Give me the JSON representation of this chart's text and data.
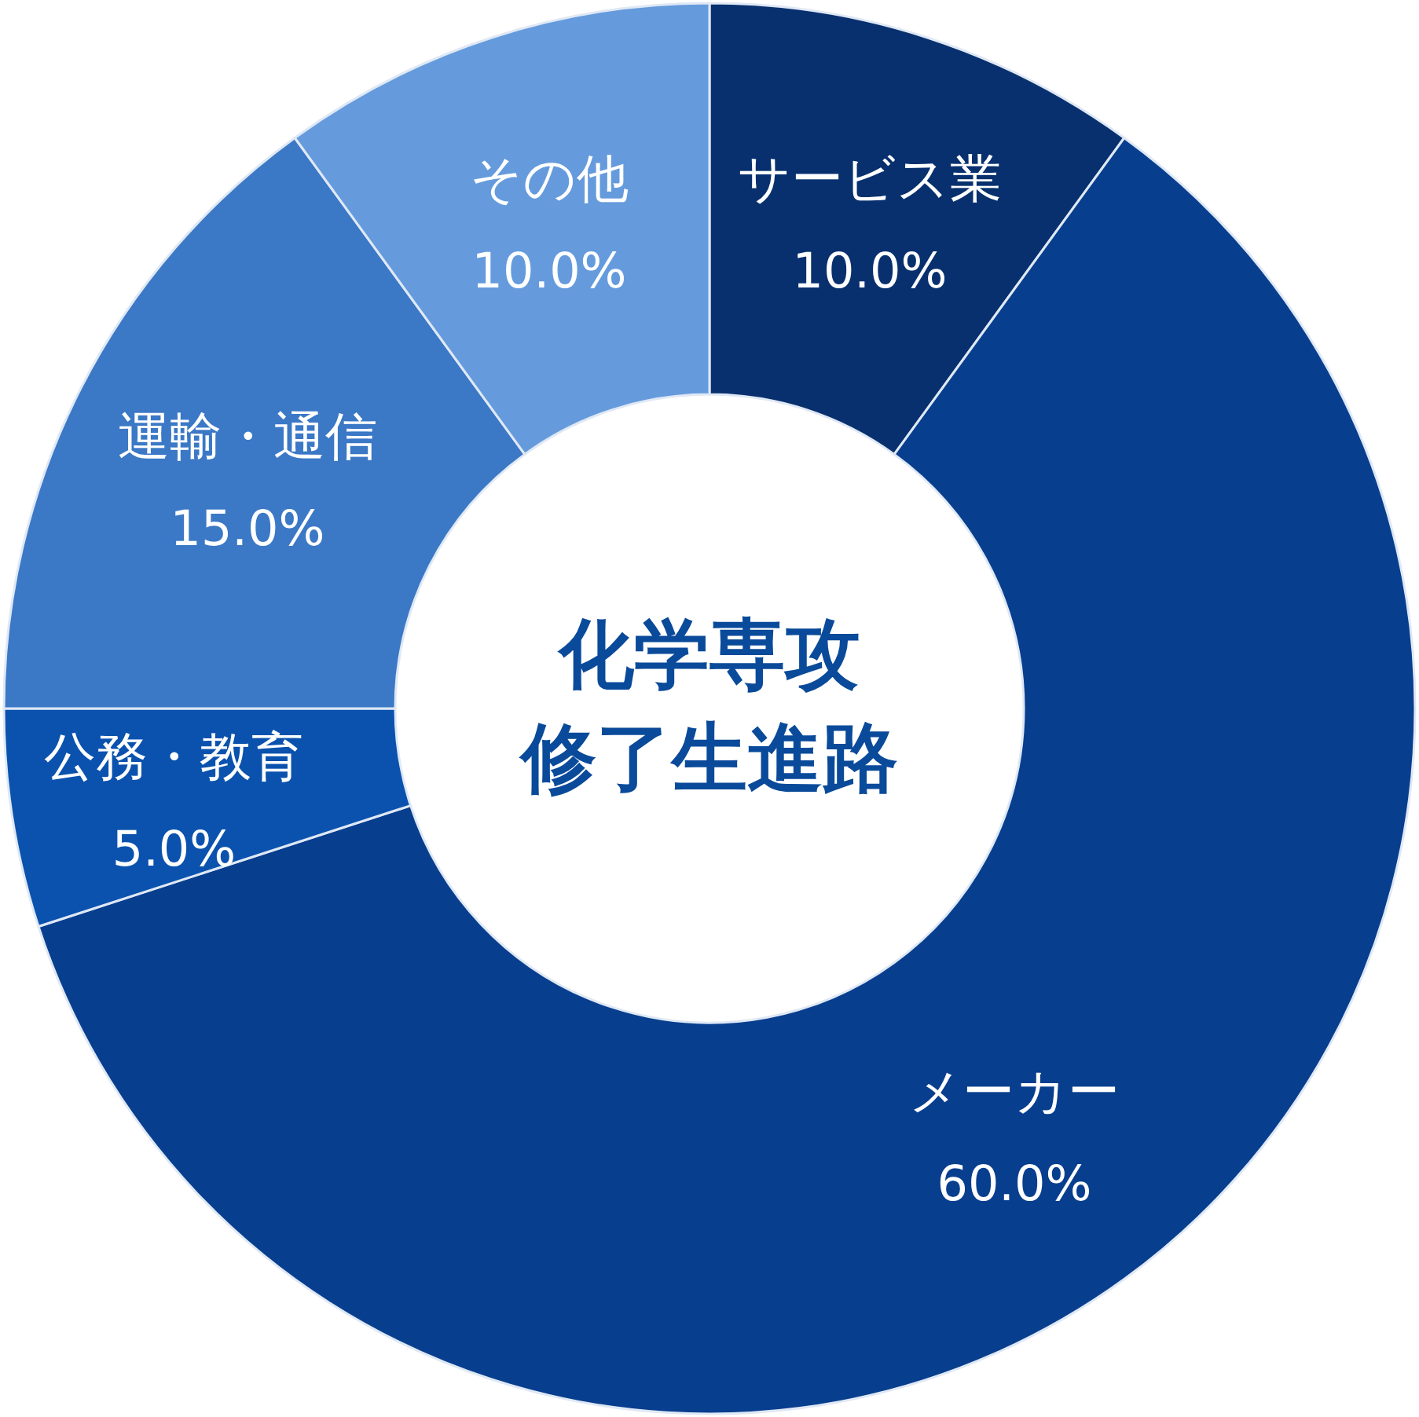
{
  "chart_data": {
    "type": "donut",
    "title": "化学専攻修了生進路",
    "categories": [
      "サービス業",
      "メーカー",
      "公務・教育",
      "運輸・通信",
      "その他"
    ],
    "values": [
      10,
      60,
      5,
      15,
      10
    ],
    "value_labels": [
      "10.0%",
      "60.0%",
      "5.0%",
      "15.0%",
      "10.0%"
    ],
    "colors": [
      "#08306e",
      "#083e8e",
      "#0a52ae",
      "#3b78c6",
      "#659bdc"
    ]
  }
}
